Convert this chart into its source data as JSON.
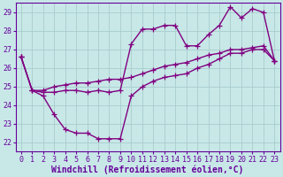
{
  "title": "",
  "xlabel": "Windchill (Refroidissement éolien,°C)",
  "line1_x": [
    0,
    1,
    2,
    3,
    4,
    5,
    6,
    7,
    8,
    9,
    10,
    11,
    12,
    13,
    14,
    15,
    16,
    17,
    18,
    19,
    20,
    21,
    22,
    23
  ],
  "line1_y": [
    26.6,
    24.8,
    24.7,
    24.7,
    24.8,
    24.8,
    24.7,
    24.8,
    24.7,
    24.8,
    27.3,
    28.1,
    28.1,
    28.3,
    28.3,
    27.2,
    27.2,
    27.8,
    28.3,
    29.3,
    28.7,
    29.2,
    29.0,
    26.4
  ],
  "line2_x": [
    0,
    1,
    2,
    3,
    4,
    5,
    6,
    7,
    8,
    9,
    10,
    11,
    12,
    13,
    14,
    15,
    16,
    17,
    18,
    19,
    20,
    21,
    22,
    23
  ],
  "line2_y": [
    26.6,
    24.8,
    24.5,
    23.5,
    22.7,
    22.5,
    22.5,
    22.2,
    22.2,
    22.2,
    24.5,
    25.0,
    25.3,
    25.5,
    25.6,
    25.7,
    26.0,
    26.2,
    26.5,
    26.8,
    26.8,
    27.0,
    27.0,
    26.4
  ],
  "line3_x": [
    0,
    1,
    2,
    3,
    4,
    5,
    6,
    7,
    8,
    9,
    10,
    11,
    12,
    13,
    14,
    15,
    16,
    17,
    18,
    19,
    20,
    21,
    22,
    23
  ],
  "line3_y": [
    26.6,
    24.8,
    24.8,
    25.0,
    25.1,
    25.2,
    25.2,
    25.3,
    25.4,
    25.4,
    25.5,
    25.7,
    25.9,
    26.1,
    26.2,
    26.3,
    26.5,
    26.7,
    26.8,
    27.0,
    27.0,
    27.1,
    27.2,
    26.4
  ],
  "line_color": "#800080",
  "bg_color": "#c8e8e8",
  "grid_color": "#a8cccc",
  "xlim": [
    -0.5,
    23.5
  ],
  "ylim": [
    21.5,
    29.5
  ],
  "yticks": [
    22,
    23,
    24,
    25,
    26,
    27,
    28,
    29
  ],
  "xticks": [
    0,
    1,
    2,
    3,
    4,
    5,
    6,
    7,
    8,
    9,
    10,
    11,
    12,
    13,
    14,
    15,
    16,
    17,
    18,
    19,
    20,
    21,
    22,
    23
  ],
  "marker": "+",
  "markersize": 4,
  "linewidth": 1.0,
  "font_color": "#660099",
  "label_fontsize": 7,
  "tick_fontsize": 6
}
